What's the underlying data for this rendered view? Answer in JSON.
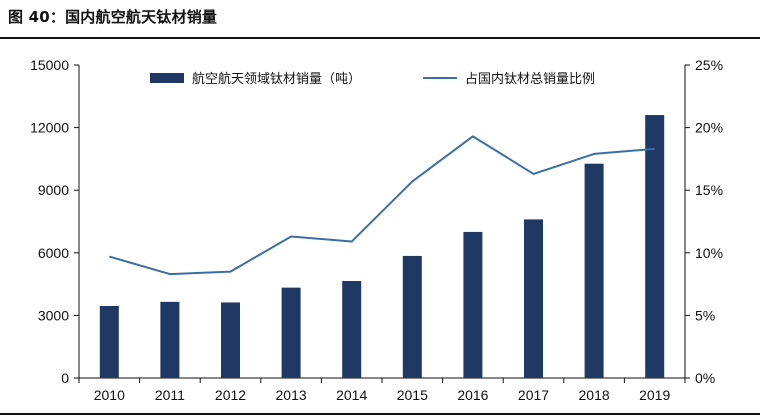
{
  "figure": {
    "title": "图 40：国内航空航天钛材销量"
  },
  "chart_data": {
    "type": "bar",
    "categories": [
      "2010",
      "2011",
      "2012",
      "2013",
      "2014",
      "2015",
      "2016",
      "2017",
      "2018",
      "2019"
    ],
    "series": [
      {
        "name": "航空航天领域钛材销量（吨）",
        "type": "bar",
        "axis": "left",
        "color": "#1f3864",
        "values": [
          3450,
          3650,
          3620,
          4330,
          4650,
          5850,
          7000,
          7600,
          10270,
          12600
        ]
      },
      {
        "name": "占国内钛材总销量比例",
        "type": "line",
        "axis": "right",
        "color": "#3a6ea5",
        "values": [
          0.097,
          0.083,
          0.085,
          0.113,
          0.109,
          0.157,
          0.193,
          0.163,
          0.179,
          0.183
        ]
      }
    ],
    "ylim_left": [
      0,
      15000
    ],
    "yticks_left": [
      "0",
      "3000",
      "6000",
      "9000",
      "12000",
      "15000"
    ],
    "ylim_right": [
      0,
      0.25
    ],
    "yticks_right": [
      "0%",
      "5%",
      "10%",
      "15%",
      "20%",
      "25%"
    ],
    "legend_position": "top",
    "grid": false
  }
}
